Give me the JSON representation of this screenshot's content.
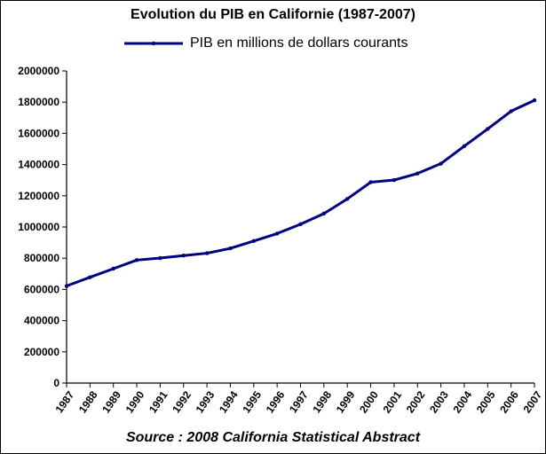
{
  "chart_data": {
    "type": "line",
    "title": "Evolution du PIB en Californie (1987-2007)",
    "source": "Source : 2008 California Statistical Abstract",
    "series": [
      {
        "name": "PIB en millions de dollars courants",
        "color": "#000080",
        "values": [
          622000,
          678000,
          733000,
          788000,
          801000,
          817000,
          832000,
          863000,
          910000,
          958000,
          1018000,
          1086000,
          1180000,
          1287000,
          1301000,
          1343000,
          1406000,
          1518000,
          1628000,
          1742000,
          1812000
        ]
      }
    ],
    "categories": [
      "1987",
      "1988",
      "1989",
      "1990",
      "1991",
      "1992",
      "1993",
      "1994",
      "1995",
      "1996",
      "1997",
      "1998",
      "1999",
      "2000",
      "2001",
      "2002",
      "2003",
      "2004",
      "2005",
      "2006",
      "2007"
    ],
    "ylim": [
      0,
      2000000
    ],
    "yticks": [
      0,
      200000,
      400000,
      600000,
      800000,
      1000000,
      1200000,
      1400000,
      1600000,
      1800000,
      2000000
    ],
    "ytick_labels": [
      "0",
      "200000",
      "400000",
      "600000",
      "800000",
      "1000000",
      "1200000",
      "1400000",
      "1600000",
      "1800000",
      "2000000"
    ],
    "xlabel": "",
    "ylabel": "",
    "grid": false,
    "legend_position": "top-center"
  }
}
